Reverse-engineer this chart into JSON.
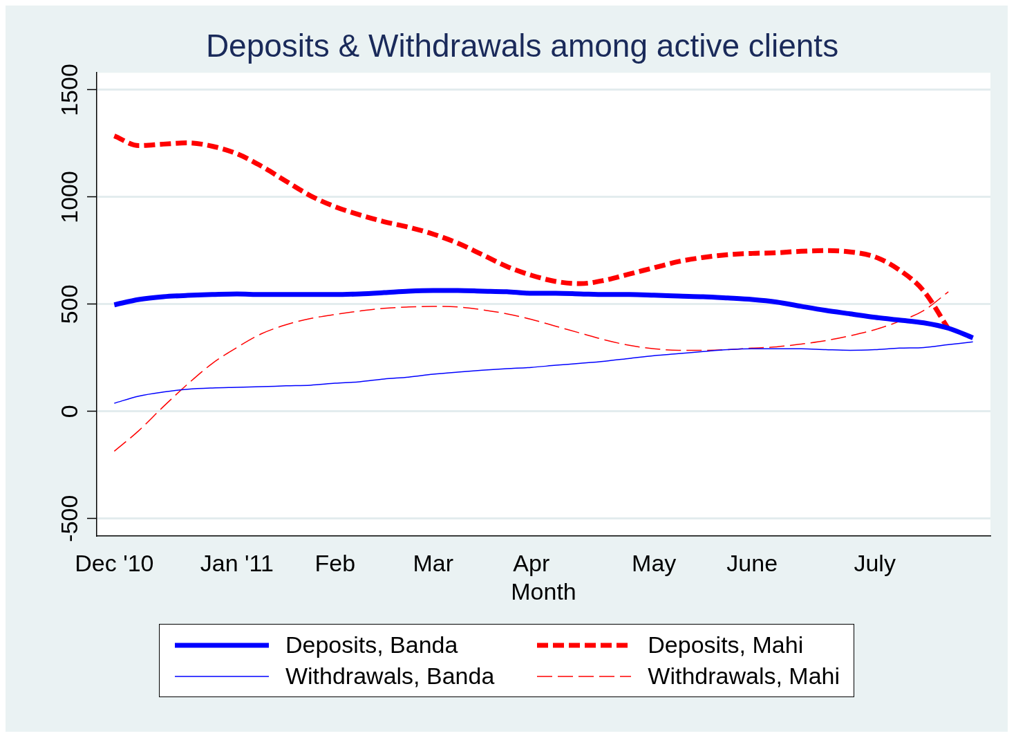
{
  "chart_data": {
    "type": "line",
    "title": "Deposits & Withdrawals among active clients",
    "xlabel": "Month",
    "x": [
      "2010-12-03",
      "2010-12-10",
      "2010-12-17",
      "2010-12-24",
      "2010-12-31",
      "2011-01-07",
      "2011-01-14",
      "2011-01-21",
      "2011-01-28",
      "2011-02-04",
      "2011-02-11",
      "2011-02-18",
      "2011-02-25",
      "2011-03-04",
      "2011-03-11",
      "2011-03-18",
      "2011-03-25",
      "2011-04-01",
      "2011-04-08",
      "2011-04-15",
      "2011-04-22",
      "2011-04-29",
      "2011-05-06",
      "2011-05-13",
      "2011-05-20",
      "2011-05-27",
      "2011-06-03",
      "2011-06-10",
      "2011-06-17",
      "2011-06-24",
      "2011-07-01",
      "2011-07-08",
      "2011-07-15",
      "2011-07-22",
      "2011-07-29",
      "2011-08-05"
    ],
    "series": [
      {
        "name": "Deposits, Banda",
        "color": "#0000ff",
        "line_style": "solid",
        "values": [
          497,
          522,
          535,
          541,
          545,
          548,
          545,
          545,
          545,
          545,
          548,
          554,
          561,
          564,
          564,
          561,
          558,
          551,
          551,
          548,
          545,
          545,
          542,
          538,
          535,
          529,
          522,
          510,
          490,
          471,
          455,
          439,
          426,
          413,
          388,
          343
        ]
      },
      {
        "name": "Withdrawals, Banda",
        "color": "#0000ff",
        "line_style": "solid",
        "values": [
          38,
          71,
          90,
          103,
          109,
          112,
          115,
          119,
          122,
          131,
          138,
          151,
          160,
          173,
          183,
          192,
          199,
          205,
          215,
          224,
          234,
          247,
          260,
          269,
          279,
          288,
          292,
          292,
          292,
          288,
          285,
          288,
          295,
          298,
          311,
          324
        ]
      },
      {
        "name": "Deposits, Mahi",
        "color": "#ff0000",
        "line_style": "dashed",
        "values": [
          1285,
          1240,
          1247,
          1253,
          1237,
          1202,
          1144,
          1074,
          1006,
          955,
          917,
          885,
          859,
          827,
          785,
          731,
          676,
          635,
          606,
          596,
          612,
          641,
          670,
          699,
          718,
          731,
          737,
          740,
          747,
          750,
          744,
          721,
          660,
          561,
          385,
          null
        ]
      },
      {
        "name": "Withdrawals, Mahi",
        "color": "#ff0000",
        "line_style": "dashed",
        "values": [
          -186,
          -90,
          22,
          128,
          224,
          298,
          362,
          404,
          433,
          452,
          468,
          481,
          487,
          490,
          487,
          474,
          455,
          429,
          397,
          365,
          333,
          308,
          292,
          285,
          285,
          288,
          295,
          301,
          314,
          330,
          353,
          381,
          420,
          471,
          558,
          null
        ]
      }
    ],
    "xlim": [
      "2010-11-28",
      "2011-08-10"
    ],
    "xticks": [
      {
        "value": "2010-12-03",
        "label": "Dec '10"
      },
      {
        "value": "2011-01-07",
        "label": "Jan '11"
      },
      {
        "value": "2011-02-04",
        "label": "Feb"
      },
      {
        "value": "2011-03-04",
        "label": "Mar"
      },
      {
        "value": "2011-04-01",
        "label": "Apr"
      },
      {
        "value": "2011-05-06",
        "label": "May"
      },
      {
        "value": "2011-06-03",
        "label": "June"
      },
      {
        "value": "2011-07-08",
        "label": "July"
      }
    ],
    "ylim": [
      -580,
      1580
    ],
    "yticks": [
      -500,
      0,
      500,
      1000,
      1500
    ],
    "grid": "y",
    "legend": "bottom",
    "marker": "none"
  }
}
